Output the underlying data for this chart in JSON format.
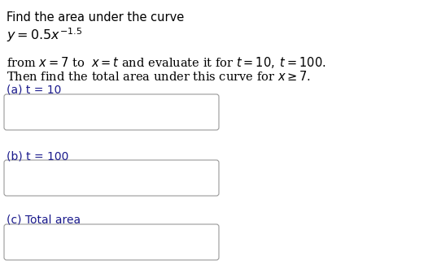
{
  "title_line1": "Find the area under the curve",
  "label_a": "(a) t = 10",
  "label_b": "(b) t = 100",
  "label_c": "(c) Total area",
  "box_color": "#ffffff",
  "box_edge_color": "#999999",
  "text_color_normal": "#000000",
  "label_color": "#1a1a8c",
  "background_color": "#ffffff",
  "font_size_title": 10.5,
  "font_size_body": 10.5,
  "font_size_label": 10.0
}
